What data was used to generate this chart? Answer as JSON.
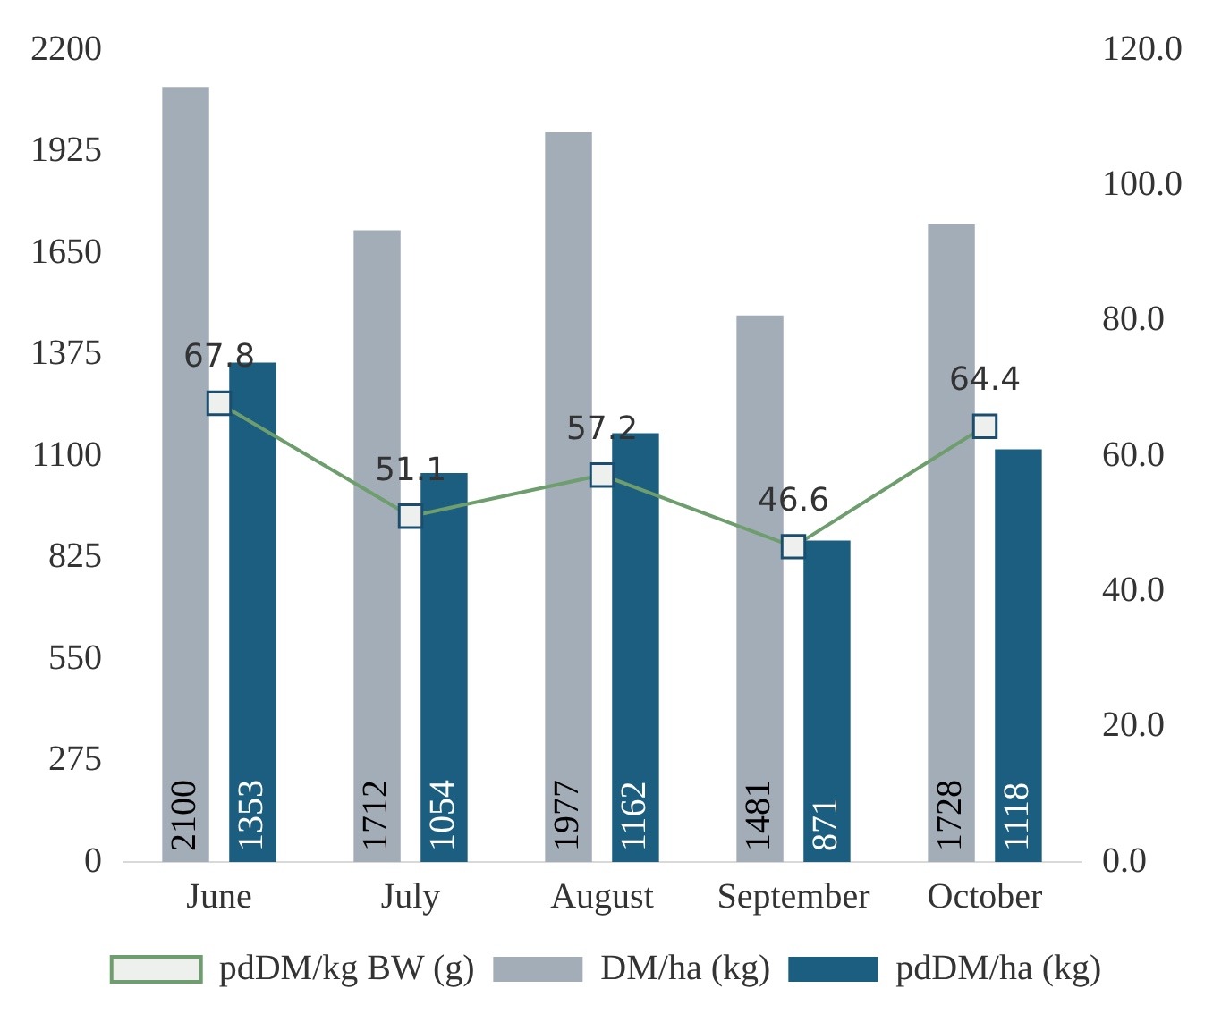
{
  "chart_data": {
    "type": "bar",
    "categories": [
      "June",
      "July",
      "August",
      "September",
      "October"
    ],
    "series": [
      {
        "name": "DM/ha (kg)",
        "color": "#a3adb8",
        "values": [
          2100,
          1712,
          1977,
          1481,
          1728
        ]
      },
      {
        "name": "pdDM/ha (kg)",
        "color": "#1b5e7f",
        "values": [
          1353,
          1054,
          1162,
          871,
          1118
        ]
      },
      {
        "name": "pdDM/kg BW (g)",
        "type": "line",
        "axis": "y2",
        "color": "#6e9e6e",
        "marker": "square",
        "values": [
          67.8,
          51.1,
          57.2,
          46.6,
          64.4
        ]
      }
    ],
    "ylim": [
      0,
      2200
    ],
    "yticks": [
      0,
      275,
      550,
      825,
      1100,
      1375,
      1650,
      1925,
      2200
    ],
    "y2lim": [
      0,
      120
    ],
    "y2ticks": [
      {
        "value": 0,
        "label": "0.0"
      },
      {
        "value": 20,
        "label": "20.0"
      },
      {
        "value": 40,
        "label": "40.0"
      },
      {
        "value": 60,
        "label": "60.0"
      },
      {
        "value": 80,
        "label": "80.0"
      },
      {
        "value": 100,
        "label": "100.0"
      },
      {
        "value": 120,
        "label": "120.0"
      }
    ],
    "data_labels": true,
    "grid": false,
    "legend": "bottom"
  }
}
